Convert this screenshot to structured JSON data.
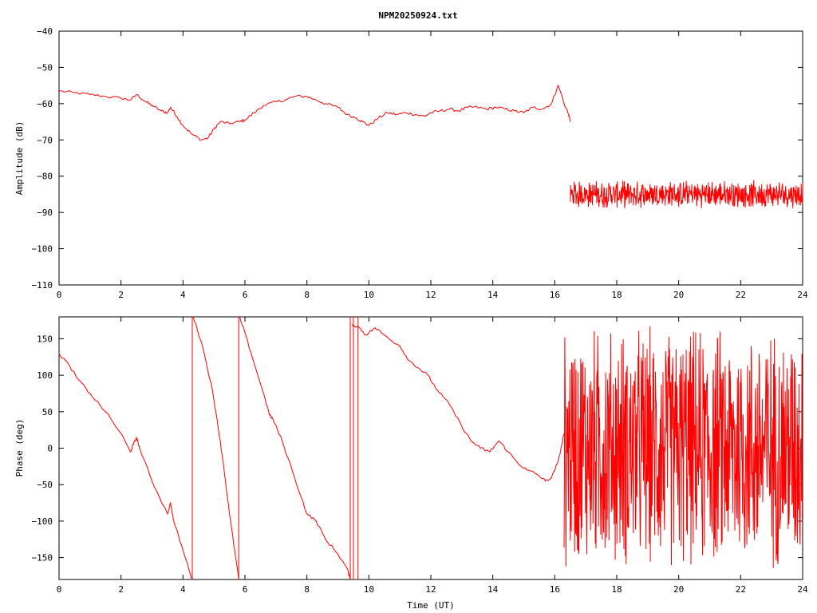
{
  "chart_data": [
    {
      "type": "line",
      "title": "NPM20250924.txt",
      "xlabel": "",
      "ylabel": "Amplitude (dB)",
      "xlim": [
        0,
        24
      ],
      "ylim": [
        -110,
        -40
      ],
      "xticks": [
        "0",
        "2",
        "4",
        "6",
        "8",
        "10",
        "12",
        "14",
        "16",
        "18",
        "20",
        "22",
        "24"
      ],
      "yticks": [
        "-110",
        "-100",
        "-90",
        "-80",
        "-70",
        "-60",
        "-50",
        "-40"
      ],
      "grid": false,
      "series": [
        {
          "color": "#ff0000",
          "x": [
            0,
            0.5,
            1,
            1.5,
            2,
            2.3,
            2.5,
            2.8,
            3,
            3.3,
            3.5,
            3.6,
            3.8,
            4,
            4.3,
            4.6,
            4.8,
            5,
            5.2,
            5.5,
            5.8,
            6,
            6.3,
            6.6,
            7,
            7.3,
            7.6,
            8,
            8.3,
            8.6,
            9,
            9.3,
            9.6,
            9.8,
            10,
            10.3,
            10.6,
            10.9,
            11.2,
            11.5,
            11.8,
            12,
            12.3,
            12.6,
            12.9,
            13.2,
            13.5,
            13.8,
            14.1,
            14.4,
            14.7,
            15,
            15.3,
            15.6,
            15.9,
            16.1,
            16.2,
            16.3,
            16.45,
            16.5
          ],
          "y": [
            -56.5,
            -57,
            -57.5,
            -58,
            -58.5,
            -59,
            -57.5,
            -59.5,
            -60.5,
            -62,
            -62.5,
            -61,
            -63.5,
            -66,
            -68.5,
            -70,
            -69.5,
            -67,
            -65,
            -65.5,
            -65,
            -64.5,
            -62.5,
            -60.5,
            -59.5,
            -59,
            -58,
            -58,
            -59,
            -60,
            -61,
            -63,
            -64,
            -65,
            -66,
            -64,
            -62.5,
            -63,
            -62.5,
            -63,
            -63.5,
            -62.5,
            -62,
            -61.5,
            -62,
            -61,
            -61,
            -61.5,
            -61,
            -61.5,
            -62,
            -62.5,
            -61,
            -61.5,
            -60,
            -55,
            -57,
            -60,
            -63,
            -65
          ]
        },
        {
          "color": "#ff0000",
          "x": [
            16.5,
            24
          ],
          "y": [
            -85,
            -85
          ],
          "noise": 4
        }
      ]
    },
    {
      "type": "line",
      "title": "",
      "xlabel": "Time (UT)",
      "ylabel": "Phase (deg)",
      "xlim": [
        0,
        24
      ],
      "ylim": [
        -180,
        180
      ],
      "xticks": [
        "0",
        "2",
        "4",
        "6",
        "8",
        "10",
        "12",
        "14",
        "16",
        "18",
        "20",
        "22",
        "24"
      ],
      "yticks": [
        "-150",
        "-100",
        "-50",
        "0",
        "50",
        "100",
        "150"
      ],
      "grid": false,
      "series": [
        {
          "color": "#ff0000",
          "x": [
            0,
            0.3,
            0.6,
            1,
            1.5,
            2,
            2.3,
            2.4,
            2.5,
            2.6,
            3,
            3.5,
            3.6,
            3.7,
            4,
            4.3
          ],
          "y": [
            130,
            115,
            95,
            75,
            50,
            20,
            -5,
            5,
            15,
            0,
            -45,
            -90,
            -75,
            -100,
            -140,
            -180
          ]
        },
        {
          "color": "#ff0000",
          "x": [
            4.33,
            4.6,
            4.9,
            5.1,
            5.3,
            5.5,
            5.7,
            5.8
          ],
          "y": [
            180,
            145,
            90,
            40,
            -20,
            -90,
            -150,
            -180
          ]
        },
        {
          "color": "#ff0000",
          "x": [
            5.83,
            6.2,
            6.6,
            6.8,
            6.9,
            7.2,
            7.6,
            8,
            8.3,
            8.6,
            9,
            9.3,
            9.4
          ],
          "y": [
            180,
            130,
            75,
            45,
            40,
            10,
            -40,
            -90,
            -100,
            -125,
            -145,
            -165,
            -180
          ]
        },
        {
          "color": "#ff0000",
          "x": [
            9.45,
            9.7,
            9.9,
            10.2,
            10.5,
            11,
            11.3,
            11.6,
            11.9,
            12.2,
            12.6,
            13,
            13.3,
            13.6,
            13.9,
            14.2,
            14.5,
            14.8,
            15.1,
            15.4,
            15.7,
            15.9,
            16.1,
            16.3
          ],
          "y": [
            170,
            165,
            155,
            165,
            155,
            140,
            120,
            110,
            100,
            80,
            60,
            30,
            10,
            0,
            -5,
            10,
            -5,
            -20,
            -30,
            -35,
            -45,
            -40,
            -20,
            20
          ]
        },
        {
          "color": "#ff0000",
          "x": [
            16.3,
            24
          ],
          "y": [
            0,
            0
          ],
          "noise": 180
        }
      ]
    }
  ]
}
